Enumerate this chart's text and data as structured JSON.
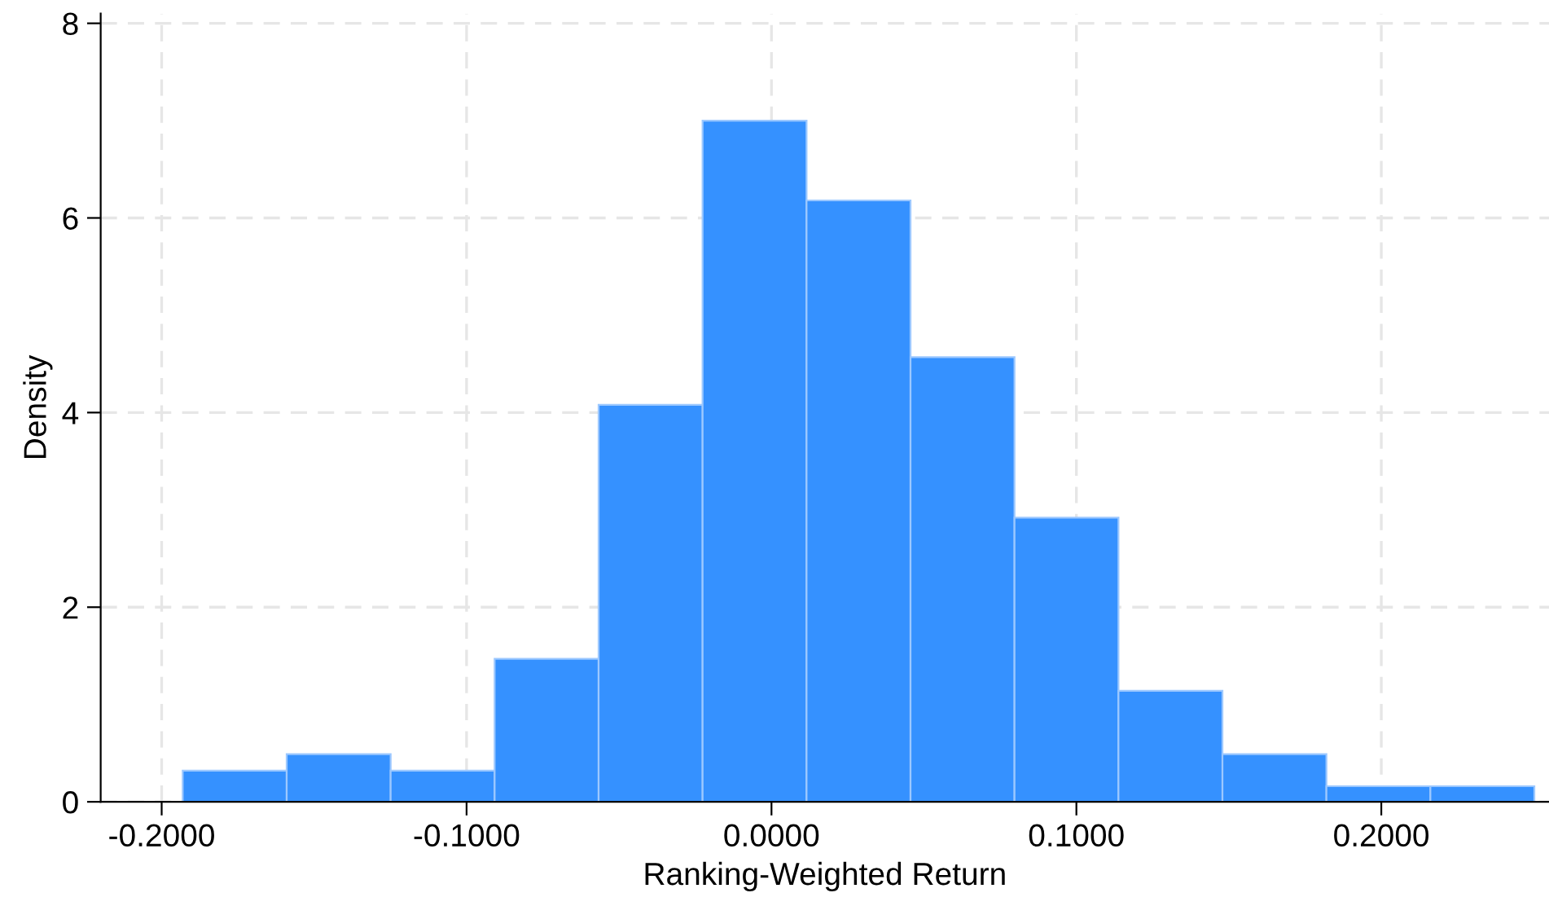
{
  "chart_data": {
    "type": "histogram",
    "xlabel": "Ranking-Weighted Return",
    "ylabel": "Density",
    "bins": [
      -0.1931,
      -0.159,
      -0.1249,
      -0.0908,
      -0.0567,
      -0.0226,
      0.0115,
      0.0456,
      0.0797,
      0.1138,
      0.1479,
      0.182,
      0.2161,
      0.2502
    ],
    "values": [
      0.32,
      0.49,
      0.32,
      1.47,
      4.08,
      7.0,
      6.18,
      4.57,
      2.92,
      1.14,
      0.49,
      0.16,
      0.16
    ],
    "color": "#3591ff",
    "xlim": [
      -0.22,
      0.255
    ],
    "xticks": [
      {
        "value": -0.2,
        "label": "-0.2000"
      },
      {
        "value": -0.1,
        "label": "-0.1000"
      },
      {
        "value": 0,
        "label": "0.0000"
      },
      {
        "value": 0.1,
        "label": "0.1000"
      },
      {
        "value": 0.2,
        "label": "0.2000"
      }
    ],
    "ylim": [
      0,
      8.1
    ],
    "yticks": [
      0,
      2,
      4,
      6,
      8
    ],
    "grid": true
  }
}
